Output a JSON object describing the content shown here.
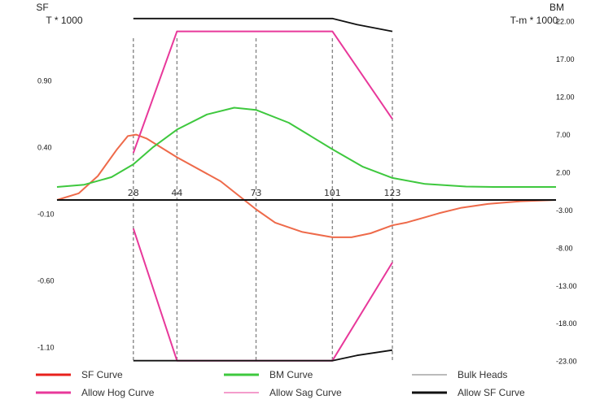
{
  "chart_data": {
    "type": "line",
    "left_axis": {
      "title_line1": "SF",
      "title_line2": "T * 1000",
      "ticks": [
        0.9,
        0.4,
        -0.1,
        -0.6,
        -1.1
      ],
      "tick_labels": [
        "0.90",
        "0.40",
        "-0.10",
        "-0.60",
        "-1.10"
      ]
    },
    "right_axis": {
      "title_line1": "BM",
      "title_line2": "T-m * 1000",
      "ticks": [
        22.0,
        17.0,
        12.0,
        7.0,
        2.0,
        -3.0,
        -8.0,
        -13.0,
        -18.0,
        -23.0
      ],
      "tick_labels": [
        "22.00",
        "17.00",
        "12.00",
        "7.00",
        "2.00",
        "-3.00",
        "-8.00",
        "-13.00",
        "-18.00",
        "-23.00"
      ]
    },
    "frame_range": [
      0,
      183
    ],
    "bulkheads": [
      28,
      44,
      73,
      101,
      123
    ],
    "bulkhead_labels": [
      "28",
      "44",
      "73",
      "101",
      "123"
    ],
    "series": [
      {
        "name": "SF Curve",
        "axis": "left",
        "color": "#ee6a4a",
        "x": [
          0,
          8,
          15,
          22,
          26,
          29,
          33,
          44,
          60,
          73,
          80,
          90,
          101,
          108,
          115,
          123,
          128,
          135,
          140,
          148,
          158,
          170,
          183
        ],
        "y": [
          0.0,
          0.05,
          0.18,
          0.38,
          0.48,
          0.49,
          0.46,
          0.32,
          0.14,
          -0.07,
          -0.17,
          -0.24,
          -0.28,
          -0.28,
          -0.25,
          -0.19,
          -0.17,
          -0.13,
          -0.1,
          -0.06,
          -0.03,
          -0.01,
          0.0
        ]
      },
      {
        "name": "BM Curve",
        "axis": "right",
        "color": "#3ec83e",
        "x": [
          0,
          10,
          20,
          28,
          35,
          44,
          55,
          65,
          73,
          85,
          101,
          112,
          123,
          135,
          150,
          160,
          170,
          183
        ],
        "y": [
          0.0,
          0.3,
          1.3,
          3.0,
          5.2,
          7.6,
          9.6,
          10.5,
          10.2,
          8.5,
          5.0,
          2.7,
          1.2,
          0.4,
          0.05,
          0.0,
          0.0,
          0.0
        ]
      },
      {
        "name": "Allow Hog Curve",
        "axis": "right",
        "color": "#e8389a",
        "x": [
          28,
          44,
          101,
          123
        ],
        "y": [
          4.5,
          20.6,
          20.6,
          9.0
        ]
      },
      {
        "name": "Allow Sag Curve",
        "axis": "right",
        "color": "#e8389a",
        "x": [
          28,
          44,
          101,
          123
        ],
        "y": [
          -5.5,
          -23.0,
          -23.0,
          -10.0
        ]
      },
      {
        "name": "Allow SF Curve",
        "axis": "right",
        "color": "#111111",
        "segments": [
          {
            "x": [
              28,
              101,
              110,
              123
            ],
            "y": [
              22.3,
              22.3,
              21.5,
              20.6
            ]
          },
          {
            "x": [
              28,
              101,
              110,
              123
            ],
            "y": [
              -23.0,
              -23.0,
              -22.3,
              -21.6
            ]
          }
        ]
      }
    ],
    "legend": {
      "placement": "bottom",
      "items": [
        {
          "label": "SF Curve",
          "color": "#e8201c",
          "style": "thick"
        },
        {
          "label": "BM Curve",
          "color": "#3ec83e",
          "style": "thick"
        },
        {
          "label": "Bulk Heads",
          "color": "#777777",
          "style": "thin"
        },
        {
          "label": "Allow Hog Curve",
          "color": "#e8389a",
          "style": "thick"
        },
        {
          "label": "Allow Sag Curve",
          "color": "#e8389a",
          "style": "thin"
        },
        {
          "label": "Allow SF Curve",
          "color": "#111111",
          "style": "thick"
        }
      ]
    },
    "grid": false
  }
}
